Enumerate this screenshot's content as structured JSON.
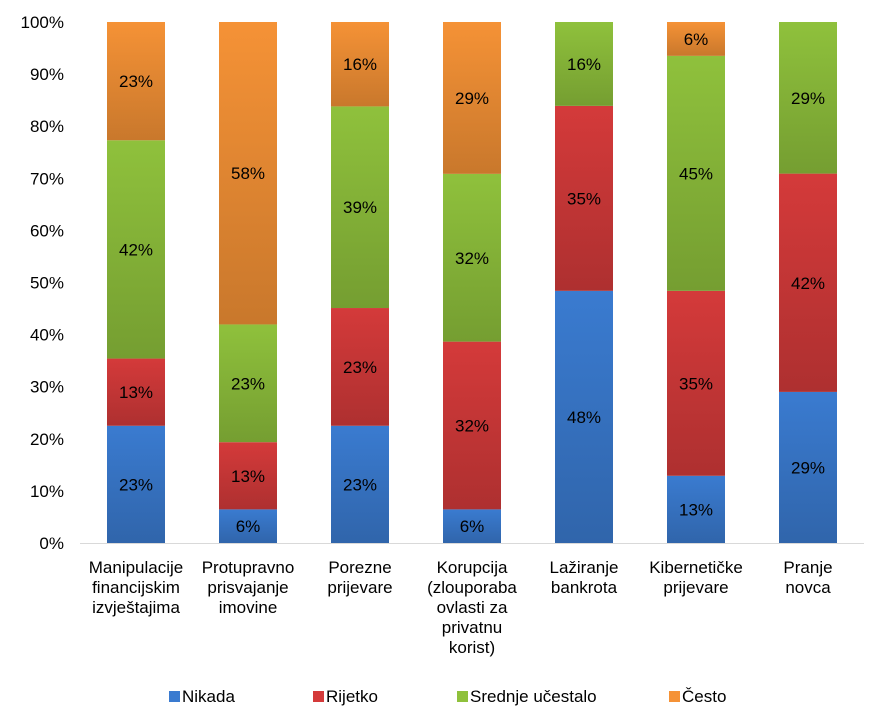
{
  "chart_data": {
    "type": "bar",
    "stacked": true,
    "percent": true,
    "categories": [
      [
        "Manipulacije",
        "financijskim",
        "izvještajima"
      ],
      [
        "Protupravno",
        "prisvajanje",
        "imovine"
      ],
      [
        "Porezne",
        "prijevare"
      ],
      [
        "Korupcija",
        "(zlouporaba",
        "ovlasti za",
        "privatnu",
        "korist)"
      ],
      [
        "Lažiranje",
        "bankrota"
      ],
      [
        "Kibernetičke",
        "prijevare"
      ],
      [
        "Pranje",
        "novca"
      ]
    ],
    "series": [
      {
        "name": "Nikada",
        "color": "#3a7bd0",
        "values": [
          22.5,
          6.45,
          22.5,
          6.45,
          48.4,
          12.9,
          29.0
        ],
        "labels": [
          "23%",
          "6%",
          "23%",
          "6%",
          "48%",
          "13%",
          "29%"
        ]
      },
      {
        "name": "Rijetko",
        "color": "#d43a3a",
        "values": [
          12.9,
          12.9,
          22.6,
          32.2,
          35.5,
          35.5,
          41.9
        ],
        "labels": [
          "13%",
          "13%",
          "23%",
          "32%",
          "35%",
          "35%",
          "42%"
        ]
      },
      {
        "name": "Srednje učestalo",
        "color": "#8fc13c",
        "values": [
          41.9,
          22.6,
          38.7,
          32.2,
          16.1,
          45.1,
          29.1
        ],
        "labels": [
          "42%",
          "23%",
          "39%",
          "32%",
          "16%",
          "45%",
          "29%"
        ]
      },
      {
        "name": "Često",
        "color": "#f59236",
        "values": [
          22.7,
          58.05,
          16.2,
          29.15,
          0,
          6.5,
          0
        ],
        "labels": [
          "23%",
          "58%",
          "16%",
          "29%",
          "",
          "6%",
          ""
        ]
      }
    ],
    "yticks": [
      "0%",
      "10%",
      "20%",
      "30%",
      "40%",
      "50%",
      "60%",
      "70%",
      "80%",
      "90%",
      "100%"
    ],
    "ylim": [
      0,
      100
    ],
    "grid": false,
    "legend_position": "bottom"
  }
}
